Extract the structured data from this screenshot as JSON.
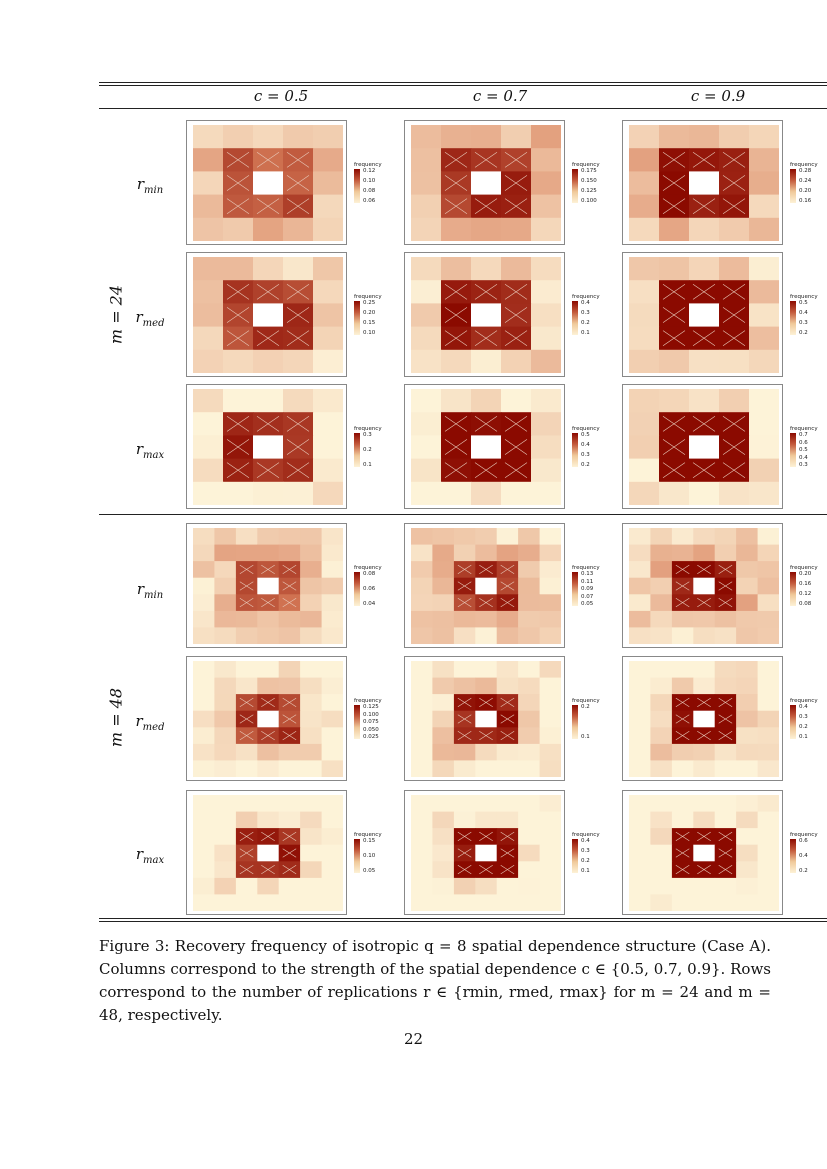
{
  "table": {
    "col_headers": [
      "c = 0.5",
      "c = 0.7",
      "c = 0.9"
    ],
    "groups": [
      {
        "label": "m = 24",
        "rows": [
          {
            "label_main": "r",
            "label_sub": "min",
            "legends": [
              {
                "title": "frequency",
                "ticks": [
                  "0.12",
                  "0.10",
                  "0.08",
                  "0.06"
                ]
              },
              {
                "title": "frequency",
                "ticks": [
                  "0.175",
                  "0.150",
                  "0.125",
                  "0.100"
                ]
              },
              {
                "title": "frequency",
                "ticks": [
                  "0.28",
                  "0.24",
                  "0.20",
                  "0.16"
                ]
              }
            ]
          },
          {
            "label_main": "r",
            "label_sub": "med",
            "legends": [
              {
                "title": "frequency",
                "ticks": [
                  "0.25",
                  "0.20",
                  "0.15",
                  "0.10"
                ]
              },
              {
                "title": "frequency",
                "ticks": [
                  "0.4",
                  "0.3",
                  "0.2",
                  "0.1"
                ]
              },
              {
                "title": "frequency",
                "ticks": [
                  "0.5",
                  "0.4",
                  "0.3",
                  "0.2"
                ]
              }
            ]
          },
          {
            "label_main": "r",
            "label_sub": "max",
            "legends": [
              {
                "title": "frequency",
                "ticks": [
                  "0.3",
                  "0.2",
                  "0.1"
                ]
              },
              {
                "title": "frequency",
                "ticks": [
                  "0.5",
                  "0.4",
                  "0.3",
                  "0.2"
                ]
              },
              {
                "title": "frequency",
                "ticks": [
                  "0.7",
                  "0.6",
                  "0.5",
                  "0.4",
                  "0.3"
                ]
              }
            ]
          }
        ]
      },
      {
        "label": "m = 48",
        "rows": [
          {
            "label_main": "r",
            "label_sub": "min",
            "legends": [
              {
                "title": "frequency",
                "ticks": [
                  "0.08",
                  "0.06",
                  "0.04"
                ]
              },
              {
                "title": "frequency",
                "ticks": [
                  "0.13",
                  "0.11",
                  "0.09",
                  "0.07",
                  "0.05"
                ]
              },
              {
                "title": "frequency",
                "ticks": [
                  "0.20",
                  "0.16",
                  "0.12",
                  "0.08"
                ]
              }
            ]
          },
          {
            "label_main": "r",
            "label_sub": "med",
            "legends": [
              {
                "title": "frequency",
                "ticks": [
                  "0.125",
                  "0.100",
                  "0.075",
                  "0.050",
                  "0.025"
                ]
              },
              {
                "title": "frequency",
                "ticks": [
                  "0.2",
                  "0.1"
                ]
              },
              {
                "title": "frequency",
                "ticks": [
                  "0.4",
                  "0.3",
                  "0.2",
                  "0.1"
                ]
              }
            ]
          },
          {
            "label_main": "r",
            "label_sub": "max",
            "legends": [
              {
                "title": "frequency",
                "ticks": [
                  "0.15",
                  "0.10",
                  "0.05"
                ]
              },
              {
                "title": "frequency",
                "ticks": [
                  "0.4",
                  "0.3",
                  "0.2",
                  "0.1"
                ]
              },
              {
                "title": "frequency",
                "ticks": [
                  "0.6",
                  "0.4",
                  "0.2"
                ]
              }
            ]
          }
        ]
      }
    ]
  },
  "colors": {
    "high": "#8b0a00",
    "mid": "#d9805c",
    "low": "#fdf3d8",
    "hole": "#ffffff",
    "cross": "#e8c8b8"
  },
  "caption": "Figure 3: Recovery frequency of isotropic q = 8 spatial dependence structure (Case A). Columns correspond to the strength of the spatial dependence c ∈ {0.5, 0.7, 0.9}. Rows correspond to the number of replications r ∈ {rmin, rmed, rmax} for m = 24 and m = 48, respectively.",
  "page_number": "22"
}
